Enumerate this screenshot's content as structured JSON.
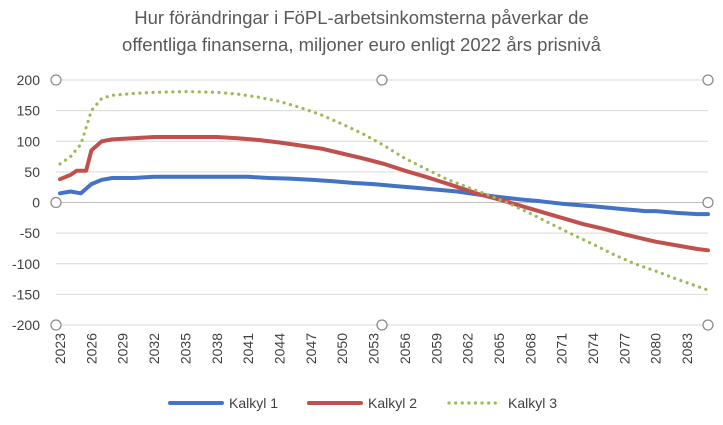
{
  "chart_data": {
    "type": "line",
    "title_line1": "Hur förändringar i FöPL-arbetsinkomsterna påverkar de",
    "title_line2": "offentliga finanserna, miljoner euro enligt 2022 års prisnivå",
    "xlabel": "",
    "ylabel": "",
    "ylim": [
      -200,
      200
    ],
    "ytick_step": 50,
    "xlim": [
      2023,
      2085
    ],
    "xtick_values": [
      2023,
      2026,
      2029,
      2032,
      2035,
      2038,
      2041,
      2044,
      2047,
      2050,
      2053,
      2056,
      2059,
      2062,
      2065,
      2068,
      2071,
      2074,
      2077,
      2080,
      2083
    ],
    "grid": "horizontal",
    "legend_position": "bottom",
    "series": [
      {
        "name": "Kalkyl 1",
        "color": "#4472C4",
        "style": "solid",
        "points": [
          [
            2023,
            15
          ],
          [
            2024,
            18
          ],
          [
            2025,
            15
          ],
          [
            2026,
            30
          ],
          [
            2027,
            37
          ],
          [
            2028,
            40
          ],
          [
            2030,
            40
          ],
          [
            2032,
            42
          ],
          [
            2035,
            42
          ],
          [
            2038,
            42
          ],
          [
            2041,
            42
          ],
          [
            2043,
            40
          ],
          [
            2045,
            39
          ],
          [
            2047,
            37
          ],
          [
            2049,
            35
          ],
          [
            2051,
            32
          ],
          [
            2053,
            30
          ],
          [
            2055,
            27
          ],
          [
            2057,
            24
          ],
          [
            2059,
            21
          ],
          [
            2061,
            18
          ],
          [
            2063,
            13
          ],
          [
            2065,
            9
          ],
          [
            2067,
            5
          ],
          [
            2069,
            2
          ],
          [
            2071,
            -2
          ],
          [
            2074,
            -6
          ],
          [
            2077,
            -11
          ],
          [
            2079,
            -14
          ],
          [
            2080,
            -14
          ],
          [
            2082,
            -17
          ],
          [
            2084,
            -19
          ],
          [
            2085,
            -19
          ]
        ]
      },
      {
        "name": "Kalkyl 2",
        "color": "#C0504D",
        "style": "solid",
        "points": [
          [
            2023,
            38
          ],
          [
            2024,
            45
          ],
          [
            2024.6,
            52
          ],
          [
            2025.5,
            52
          ],
          [
            2026,
            85
          ],
          [
            2027,
            100
          ],
          [
            2028,
            103
          ],
          [
            2030,
            105
          ],
          [
            2032,
            107
          ],
          [
            2035,
            107
          ],
          [
            2038,
            107
          ],
          [
            2040,
            105
          ],
          [
            2042,
            102
          ],
          [
            2044,
            98
          ],
          [
            2046,
            93
          ],
          [
            2048,
            88
          ],
          [
            2050,
            80
          ],
          [
            2052,
            72
          ],
          [
            2054,
            63
          ],
          [
            2056,
            52
          ],
          [
            2058,
            42
          ],
          [
            2060,
            31
          ],
          [
            2062,
            20
          ],
          [
            2063,
            14
          ],
          [
            2065,
            5
          ],
          [
            2067,
            -5
          ],
          [
            2069,
            -15
          ],
          [
            2071,
            -25
          ],
          [
            2073,
            -35
          ],
          [
            2075,
            -43
          ],
          [
            2077,
            -52
          ],
          [
            2079,
            -60
          ],
          [
            2080,
            -64
          ],
          [
            2082,
            -70
          ],
          [
            2084,
            -76
          ],
          [
            2085,
            -78
          ]
        ]
      },
      {
        "name": "Kalkyl 3",
        "color": "#9BBB59",
        "style": "dotted",
        "points": [
          [
            2023,
            63
          ],
          [
            2024,
            75
          ],
          [
            2025,
            95
          ],
          [
            2026,
            150
          ],
          [
            2027,
            170
          ],
          [
            2028,
            175
          ],
          [
            2030,
            178
          ],
          [
            2032,
            180
          ],
          [
            2035,
            181
          ],
          [
            2038,
            180
          ],
          [
            2040,
            177
          ],
          [
            2042,
            172
          ],
          [
            2044,
            165
          ],
          [
            2046,
            155
          ],
          [
            2048,
            143
          ],
          [
            2050,
            128
          ],
          [
            2052,
            112
          ],
          [
            2054,
            93
          ],
          [
            2056,
            72
          ],
          [
            2058,
            55
          ],
          [
            2060,
            38
          ],
          [
            2062,
            25
          ],
          [
            2064,
            12
          ],
          [
            2066,
            -2
          ],
          [
            2068,
            -18
          ],
          [
            2070,
            -35
          ],
          [
            2072,
            -52
          ],
          [
            2074,
            -68
          ],
          [
            2076,
            -85
          ],
          [
            2078,
            -100
          ],
          [
            2080,
            -112
          ],
          [
            2082,
            -125
          ],
          [
            2084,
            -137
          ],
          [
            2085,
            -143
          ]
        ]
      }
    ]
  }
}
